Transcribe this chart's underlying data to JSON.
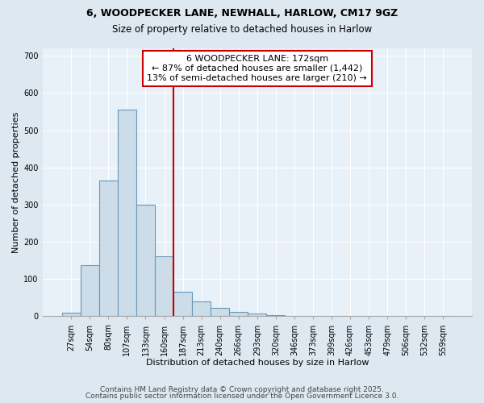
{
  "title_line1": "6, WOODPECKER LANE, NEWHALL, HARLOW, CM17 9GZ",
  "title_line2": "Size of property relative to detached houses in Harlow",
  "xlabel": "Distribution of detached houses by size in Harlow",
  "ylabel": "Number of detached properties",
  "bar_labels": [
    "27sqm",
    "54sqm",
    "80sqm",
    "107sqm",
    "133sqm",
    "160sqm",
    "187sqm",
    "213sqm",
    "240sqm",
    "266sqm",
    "293sqm",
    "320sqm",
    "346sqm",
    "373sqm",
    "399sqm",
    "426sqm",
    "453sqm",
    "479sqm",
    "506sqm",
    "532sqm",
    "559sqm"
  ],
  "bar_values": [
    10,
    138,
    365,
    556,
    300,
    162,
    65,
    40,
    22,
    12,
    8,
    3,
    0,
    0,
    0,
    0,
    0,
    0,
    0,
    0,
    0
  ],
  "bar_color": "#ccdce8",
  "bar_edgecolor": "#6699bb",
  "vline_x": 5.5,
  "vline_color": "#cc0000",
  "annotation_text": "6 WOODPECKER LANE: 172sqm\n← 87% of detached houses are smaller (1,442)\n13% of semi-detached houses are larger (210) →",
  "annotation_box_color": "#ffffff",
  "annotation_box_edgecolor": "#cc0000",
  "ylim": [
    0,
    720
  ],
  "yticks": [
    0,
    100,
    200,
    300,
    400,
    500,
    600,
    700
  ],
  "bg_color": "#dde8f0",
  "plot_bg_color": "#e8f0f8",
  "grid_color": "#ffffff",
  "footer_line1": "Contains HM Land Registry data © Crown copyright and database right 2025.",
  "footer_line2": "Contains public sector information licensed under the Open Government Licence 3.0.",
  "title1_fontsize": 9,
  "title2_fontsize": 8.5,
  "xlabel_fontsize": 8,
  "ylabel_fontsize": 8,
  "tick_fontsize": 7,
  "annot_fontsize": 8
}
